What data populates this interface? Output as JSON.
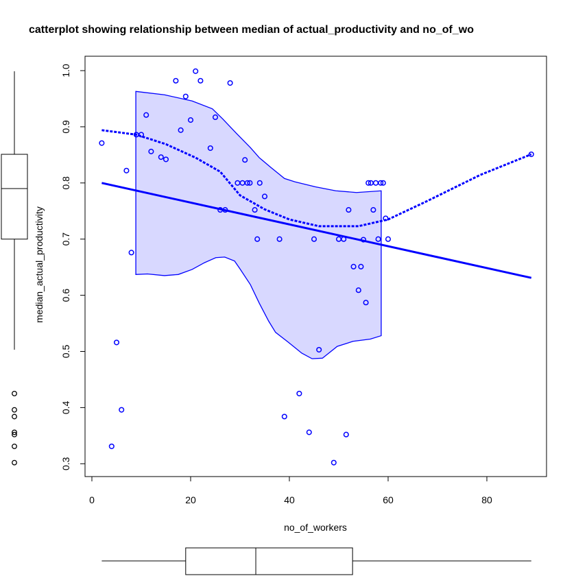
{
  "chart_data": {
    "type": "scatter",
    "title": "catterplot showing relationship between median of actual_productivity and no_of_wo",
    "xlabel": "no_of_workers",
    "ylabel": "median_actual_productivity",
    "xlim": [
      0,
      92
    ],
    "ylim": [
      0.3,
      1.0
    ],
    "x_ticks": [
      0,
      20,
      40,
      60,
      80
    ],
    "y_ticks": [
      0.3,
      0.4,
      0.5,
      0.6,
      0.7,
      0.8,
      0.9,
      1.0
    ],
    "grid": false,
    "color": "#0000ff",
    "band_fill": "#d8d8ff",
    "points": {
      "x": [
        2,
        4,
        5,
        6,
        7,
        8,
        9,
        10,
        11,
        12,
        14,
        15,
        17,
        18,
        19,
        20,
        21,
        22,
        24,
        25,
        26,
        27,
        28,
        29.5,
        30.5,
        31,
        31.5,
        32,
        33,
        33.5,
        34,
        35,
        38,
        39,
        42,
        44,
        45,
        46,
        49,
        50,
        51,
        51.5,
        52,
        53,
        54,
        54.5,
        55,
        55.5,
        56,
        56.5,
        57,
        57.5,
        58,
        58.5,
        59,
        59.5,
        60,
        89
      ],
      "y": [
        0.871,
        0.331,
        0.516,
        0.396,
        0.822,
        0.676,
        0.886,
        0.886,
        0.921,
        0.856,
        0.846,
        0.842,
        0.982,
        0.894,
        0.954,
        0.912,
        0.999,
        0.982,
        0.862,
        0.917,
        0.752,
        0.752,
        0.978,
        0.8,
        0.8,
        0.841,
        0.8,
        0.8,
        0.752,
        0.7,
        0.8,
        0.776,
        0.7,
        0.384,
        0.425,
        0.356,
        0.7,
        0.503,
        0.302,
        0.7,
        0.7,
        0.352,
        0.752,
        0.651,
        0.609,
        0.651,
        0.699,
        0.587,
        0.8,
        0.8,
        0.752,
        0.8,
        0.7,
        0.8,
        0.8,
        0.737,
        0.7,
        0.851
      ]
    },
    "regression_line": {
      "x": [
        2,
        89
      ],
      "y": [
        0.8,
        0.631
      ]
    },
    "smooth_line": {
      "x": [
        2,
        9,
        15,
        21,
        26,
        30,
        35,
        40,
        46,
        54,
        60,
        67.5,
        78.6,
        89
      ],
      "y": [
        0.894,
        0.886,
        0.869,
        0.845,
        0.82,
        0.778,
        0.753,
        0.735,
        0.723,
        0.723,
        0.735,
        0.766,
        0.814,
        0.851
      ]
    },
    "band": {
      "upper": {
        "x": [
          8.9,
          14.7,
          20.3,
          24.4,
          26.5,
          29.3,
          32.1,
          33.9,
          36.2,
          39,
          41.1,
          45.3,
          49.4,
          53.6,
          58.6
        ],
        "y": [
          0.963,
          0.957,
          0.946,
          0.932,
          0.914,
          0.888,
          0.863,
          0.845,
          0.828,
          0.808,
          0.802,
          0.793,
          0.786,
          0.783,
          0.786
        ]
      },
      "lower": {
        "x": [
          8.9,
          11.25,
          14.7,
          17.5,
          20.3,
          22.8,
          25.1,
          26.9,
          28.9,
          30,
          32.1,
          33.9,
          35.8,
          37.2,
          39.7,
          42.5,
          44.6,
          46.7,
          49.7,
          52.9,
          56.4,
          58.6
        ],
        "y": [
          0.637,
          0.638,
          0.635,
          0.637,
          0.646,
          0.658,
          0.667,
          0.668,
          0.661,
          0.647,
          0.619,
          0.586,
          0.554,
          0.534,
          0.517,
          0.497,
          0.487,
          0.488,
          0.509,
          0.518,
          0.522,
          0.528
        ]
      }
    },
    "y_boxplot": {
      "whisker_low": 0.503,
      "q1": 0.7,
      "median": 0.79,
      "q3": 0.851,
      "whisker_high": 0.999,
      "outliers": [
        0.425,
        0.396,
        0.384,
        0.356,
        0.352,
        0.331,
        0.302
      ]
    },
    "x_boxplot": {
      "whisker_low": 2,
      "q1": 19,
      "median": 33.2,
      "q3": 52.8,
      "whisker_high": 89
    }
  }
}
